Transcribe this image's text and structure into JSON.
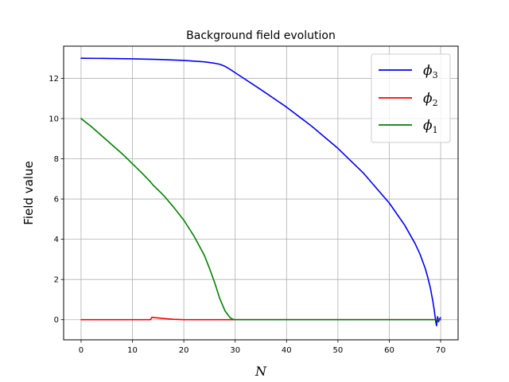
{
  "chart_data": {
    "type": "line",
    "title": "Background field evolution",
    "xlabel": "N",
    "ylabel": "Field value",
    "xlim": [
      -3.4,
      73.4
    ],
    "ylim": [
      -1.0,
      13.6
    ],
    "xticks": [
      0,
      10,
      20,
      30,
      40,
      50,
      60,
      70
    ],
    "yticks": [
      0,
      2,
      4,
      6,
      8,
      10,
      12
    ],
    "grid": true,
    "legend_position": "top-right",
    "series": [
      {
        "name": "ϕ3",
        "label_base": "ϕ",
        "label_sub": "3",
        "color": "#0000ff",
        "x": [
          0,
          5,
          10,
          15,
          20,
          24,
          26,
          27,
          28,
          29,
          30,
          35,
          40,
          45,
          50,
          55,
          60,
          63,
          65,
          66,
          67,
          67.5,
          68,
          68.5,
          68.8,
          69.0,
          69.2,
          69.4,
          69.6,
          69.8,
          70.0
        ],
        "y": [
          13.0,
          12.99,
          12.97,
          12.94,
          12.89,
          12.82,
          12.75,
          12.7,
          12.6,
          12.45,
          12.28,
          11.44,
          10.57,
          9.6,
          8.52,
          7.28,
          5.8,
          4.7,
          3.8,
          3.25,
          2.55,
          2.1,
          1.58,
          0.9,
          0.4,
          0.0,
          -0.3,
          0.15,
          -0.1,
          0.05,
          0.1
        ]
      },
      {
        "name": "ϕ2",
        "label_base": "ϕ",
        "label_sub": "2",
        "color": "#ff0000",
        "x": [
          0,
          10,
          13.5,
          13.8,
          14.5,
          16,
          18,
          20,
          25,
          30,
          40,
          50,
          60,
          69,
          69.3,
          69.6,
          70
        ],
        "y": [
          0.0,
          0.0,
          0.0,
          0.12,
          0.1,
          0.06,
          0.02,
          0.0,
          0.0,
          0.0,
          0.0,
          0.0,
          0.0,
          0.0,
          0.02,
          -0.02,
          0.0
        ]
      },
      {
        "name": "ϕ1",
        "label_base": "ϕ",
        "label_sub": "1",
        "color": "#008000",
        "x": [
          0,
          2,
          4,
          6,
          8,
          10,
          12,
          13.5,
          14,
          16,
          18,
          20,
          22,
          24,
          25,
          26,
          27,
          28,
          29,
          29.5,
          30,
          31,
          35,
          40,
          50,
          60,
          70
        ],
        "y": [
          10.0,
          9.6,
          9.15,
          8.7,
          8.25,
          7.75,
          7.25,
          6.85,
          6.7,
          6.2,
          5.6,
          4.95,
          4.15,
          3.2,
          2.55,
          1.85,
          1.05,
          0.45,
          0.1,
          0.03,
          0.0,
          0.0,
          0.0,
          0.0,
          0.0,
          0.0,
          0.0
        ]
      }
    ]
  }
}
